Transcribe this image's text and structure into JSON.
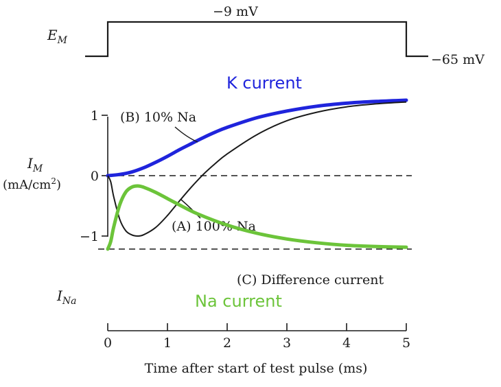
{
  "chart_data": {
    "type": "line",
    "voltage_panel": {
      "label_main": "E",
      "label_sub": "M",
      "step_label": "−9 mV",
      "rest_label": "−65 mV",
      "step_start_ms": 0,
      "step_end_ms": 5,
      "holding_mV": -65,
      "step_mV": -9
    },
    "current_panel": {
      "ylabel_main": "I",
      "ylabel_sub": "M",
      "ylabel_units": "(mA/cm",
      "ylabel_units_sup": "2",
      "ylabel_units_close": ")",
      "yticks": [
        "1",
        "0",
        "−1"
      ],
      "ytick_values": [
        1,
        0,
        -1
      ],
      "ylim": [
        -1.25,
        1.4
      ]
    },
    "na_panel": {
      "ylabel_main": "I",
      "ylabel_sub": "Na"
    },
    "x_axis": {
      "xlabel": "Time after start of test pulse (ms)",
      "ticks": [
        "0",
        "1",
        "2",
        "3",
        "4",
        "5"
      ],
      "tick_values": [
        0,
        1,
        2,
        3,
        4,
        5
      ],
      "xlim": [
        0,
        5
      ]
    },
    "series": [
      {
        "name": "(A) 100% Na",
        "color": "#1a1a1a",
        "panel": "current",
        "x": [
          0,
          0.05,
          0.1,
          0.2,
          0.3,
          0.4,
          0.5,
          0.6,
          0.8,
          1.0,
          1.2,
          1.4,
          1.6,
          1.8,
          2.0,
          2.5,
          3.0,
          3.5,
          4.0,
          4.5,
          5.0
        ],
        "y": [
          0,
          -0.1,
          -0.35,
          -0.72,
          -0.91,
          -0.98,
          -1.0,
          -0.98,
          -0.86,
          -0.66,
          -0.42,
          -0.19,
          0.02,
          0.2,
          0.36,
          0.68,
          0.91,
          1.05,
          1.14,
          1.19,
          1.22
        ]
      },
      {
        "name": "(B) 10% Na",
        "color": "#1a1a1a",
        "panel": "current",
        "x": [
          0,
          0.2,
          0.4,
          0.6,
          0.8,
          1.0,
          1.2,
          1.4,
          1.6,
          1.8,
          2.0,
          2.5,
          3.0,
          3.5,
          4.0,
          4.5,
          5.0
        ],
        "y": [
          0,
          0.02,
          0.06,
          0.13,
          0.22,
          0.32,
          0.43,
          0.53,
          0.63,
          0.72,
          0.8,
          0.96,
          1.07,
          1.15,
          1.2,
          1.23,
          1.25
        ]
      },
      {
        "name": "K current",
        "color": "#1f24dc",
        "panel": "current",
        "x": [
          0,
          0.2,
          0.4,
          0.6,
          0.8,
          1.0,
          1.2,
          1.4,
          1.6,
          1.8,
          2.0,
          2.5,
          3.0,
          3.5,
          4.0,
          4.5,
          5.0
        ],
        "y": [
          0,
          0.02,
          0.06,
          0.13,
          0.22,
          0.32,
          0.43,
          0.53,
          0.63,
          0.72,
          0.8,
          0.96,
          1.07,
          1.15,
          1.2,
          1.23,
          1.25
        ]
      },
      {
        "name": "(C) Difference current",
        "color": "#1a1a1a",
        "panel": "na",
        "x": [
          0,
          0.05,
          0.1,
          0.2,
          0.3,
          0.4,
          0.5,
          0.6,
          0.8,
          1.0,
          1.2,
          1.5,
          2.0,
          2.5,
          3.0,
          3.5,
          4.0,
          4.5,
          5.0
        ],
        "y": [
          0,
          -0.12,
          -0.35,
          -0.7,
          -0.9,
          -0.98,
          -1.0,
          -0.98,
          -0.9,
          -0.8,
          -0.7,
          -0.56,
          -0.38,
          -0.25,
          -0.16,
          -0.1,
          -0.06,
          -0.04,
          -0.03
        ]
      },
      {
        "name": "Na current",
        "color": "#6cc43a",
        "panel": "na",
        "x": [
          0,
          0.05,
          0.1,
          0.2,
          0.3,
          0.4,
          0.5,
          0.6,
          0.8,
          1.0,
          1.2,
          1.5,
          2.0,
          2.5,
          3.0,
          3.5,
          4.0,
          4.5,
          5.0
        ],
        "y": [
          0,
          -0.12,
          -0.35,
          -0.7,
          -0.9,
          -0.98,
          -1.0,
          -0.98,
          -0.9,
          -0.8,
          -0.7,
          -0.56,
          -0.38,
          -0.25,
          -0.16,
          -0.1,
          -0.06,
          -0.04,
          -0.03
        ]
      }
    ],
    "annotations": {
      "k_current": "K current",
      "na_current": "Na current",
      "label_a": "(A) 100% Na",
      "label_b": "(B) 10% Na",
      "label_c": "(C) Difference current"
    },
    "colors": {
      "k": "#1f24dc",
      "na": "#6cc43a",
      "ink": "#1a1a1a"
    }
  }
}
